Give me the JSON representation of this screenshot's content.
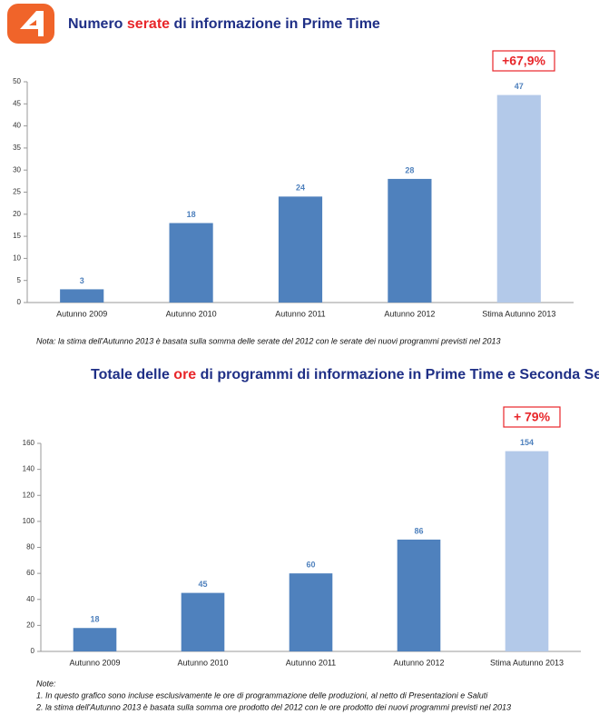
{
  "chart_data": [
    {
      "type": "bar",
      "title": {
        "before": "Numero",
        "highlight": "serate",
        "after": "di informazione in Prime Time"
      },
      "annotation": "+67,9%",
      "categories": [
        "Autunno 2009",
        "Autunno 2010",
        "Autunno 2011",
        "Autunno 2012",
        "Stima Autunno 2013"
      ],
      "values": [
        3,
        18,
        24,
        28,
        47
      ],
      "colors": [
        "#4f81bd",
        "#4f81bd",
        "#4f81bd",
        "#4f81bd",
        "#b3c9e9"
      ],
      "ylim": [
        0,
        50
      ],
      "yticks": [
        0,
        5,
        10,
        15,
        20,
        25,
        30,
        35,
        40,
        45,
        50
      ],
      "notes": [
        "Nota: la stima dell'Autunno 2013 è basata sulla somma delle serate del 2012 con le serate  dei nuovi programmi previsti nel 2013"
      ]
    },
    {
      "type": "bar",
      "title": {
        "before": "Totale delle",
        "highlight": "ore",
        "after": "di programmi di informazione in Prime Time e Seconda Serata"
      },
      "annotation": "+ 79%",
      "categories": [
        "Autunno 2009",
        "Autunno 2010",
        "Autunno 2011",
        "Autunno 2012",
        "Stima Autunno 2013"
      ],
      "values": [
        18,
        45,
        60,
        86,
        154
      ],
      "colors": [
        "#4f81bd",
        "#4f81bd",
        "#4f81bd",
        "#4f81bd",
        "#b3c9e9"
      ],
      "ylim": [
        0,
        160
      ],
      "yticks": [
        0,
        20,
        40,
        60,
        80,
        100,
        120,
        140,
        160
      ],
      "notes": [
        "Note:",
        "1. In questo grafico sono incluse esclusivamente le ore di programmazione delle produzioni, al netto di Presentazioni e Saluti",
        "2. la stima dell'Autunno 2013 è basata sulla somma ore prodotto del 2012 con le ore prodotto dei nuovi programmi previsti nel 2013"
      ]
    }
  ]
}
